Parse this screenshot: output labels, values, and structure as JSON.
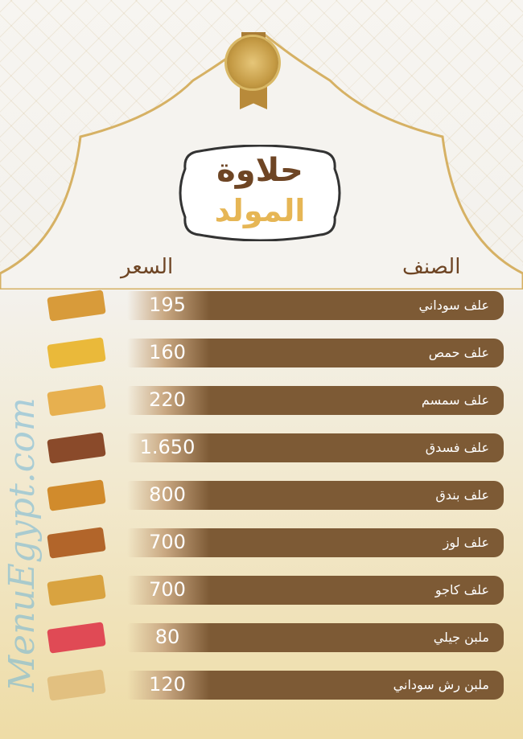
{
  "title": {
    "line1": "حلاوة",
    "line2": "المولد"
  },
  "headers": {
    "item": "الصنف",
    "price": "السعر"
  },
  "watermark": "MenuEgypt.com",
  "colors": {
    "brown": "#7d5a35",
    "gold": "#e6b655",
    "title_brown": "#6e4524"
  },
  "items": [
    {
      "name": "علف سوداني",
      "price": "195",
      "image_color": "#d89b3a"
    },
    {
      "name": "علف حمص",
      "price": "160",
      "image_color": "#eab93a"
    },
    {
      "name": "علف سمسم",
      "price": "220",
      "image_color": "#e7b04f"
    },
    {
      "name": "علف فسدق",
      "price": "1.650",
      "image_color": "#8a4a2a"
    },
    {
      "name": "علف بندق",
      "price": "800",
      "image_color": "#d18b2c"
    },
    {
      "name": "علف لوز",
      "price": "700",
      "image_color": "#b2652a"
    },
    {
      "name": "علف كاجو",
      "price": "700",
      "image_color": "#d9a340"
    },
    {
      "name": "ملبن جيلي",
      "price": "80",
      "image_color": "#e04a55"
    },
    {
      "name": "ملبن رش سوداني",
      "price": "120",
      "image_color": "#e2c080"
    }
  ]
}
